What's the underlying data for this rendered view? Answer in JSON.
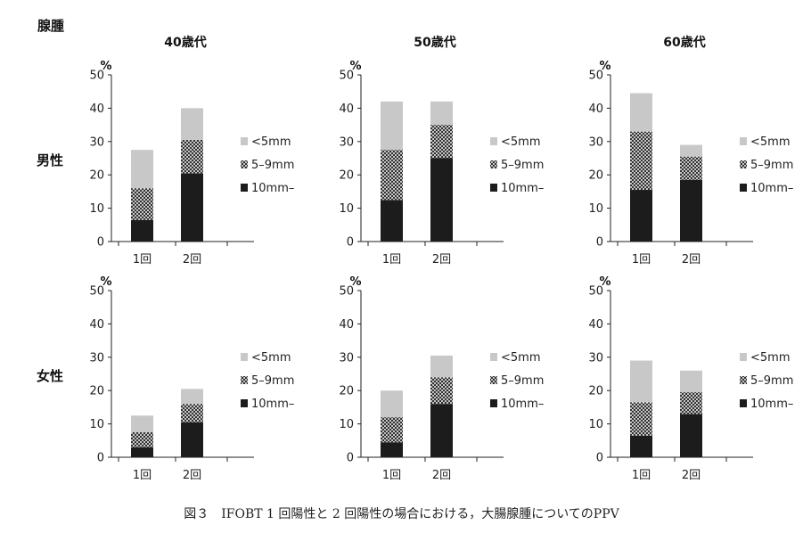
{
  "figure": {
    "heading": "腺腫",
    "caption": "図３　IFOBT 1 回陽性と 2 回陽性の場合における，大腸腺腫についてのPPV"
  },
  "rows": [
    {
      "label": "男性"
    },
    {
      "label": "女性"
    }
  ],
  "columns": [
    {
      "label": "40歳代"
    },
    {
      "label": "50歳代"
    },
    {
      "label": "60歳代"
    }
  ],
  "colors": {
    "lt5mm": "#c8c8c8",
    "5to9mm": "pattern-crosshatch",
    "10mm": "#1c1c1c"
  },
  "chart_data": [
    {
      "type": "bar",
      "stacked": true,
      "row": "男性",
      "col": "40歳代",
      "unit": "%",
      "ylim": [
        0,
        50
      ],
      "yticks": [
        0,
        10,
        20,
        30,
        40,
        50
      ],
      "categories": [
        "1回",
        "2回"
      ],
      "series": [
        {
          "name": "10mm–",
          "values": [
            6.5,
            20.5
          ]
        },
        {
          "name": "5–9mm",
          "values": [
            9.5,
            10.0
          ]
        },
        {
          "name": "<5mm",
          "values": [
            11.5,
            9.5
          ]
        }
      ]
    },
    {
      "type": "bar",
      "stacked": true,
      "row": "男性",
      "col": "50歳代",
      "unit": "%",
      "ylim": [
        0,
        50
      ],
      "yticks": [
        0,
        10,
        20,
        30,
        40,
        50
      ],
      "categories": [
        "1回",
        "2回"
      ],
      "series": [
        {
          "name": "10mm–",
          "values": [
            12.5,
            25.0
          ]
        },
        {
          "name": "5–9mm",
          "values": [
            15.0,
            10.0
          ]
        },
        {
          "name": "<5mm",
          "values": [
            14.5,
            7.0
          ]
        }
      ]
    },
    {
      "type": "bar",
      "stacked": true,
      "row": "男性",
      "col": "60歳代",
      "unit": "%",
      "ylim": [
        0,
        50
      ],
      "yticks": [
        0,
        10,
        20,
        30,
        40,
        50
      ],
      "categories": [
        "1回",
        "2回"
      ],
      "series": [
        {
          "name": "10mm–",
          "values": [
            15.5,
            18.5
          ]
        },
        {
          "name": "5–9mm",
          "values": [
            17.5,
            7.0
          ]
        },
        {
          "name": "<5mm",
          "values": [
            11.5,
            3.5
          ]
        }
      ]
    },
    {
      "type": "bar",
      "stacked": true,
      "row": "女性",
      "col": "40歳代",
      "unit": "%",
      "ylim": [
        0,
        50
      ],
      "yticks": [
        0,
        10,
        20,
        30,
        40,
        50
      ],
      "categories": [
        "1回",
        "2回"
      ],
      "series": [
        {
          "name": "10mm–",
          "values": [
            3.0,
            10.5
          ]
        },
        {
          "name": "5–9mm",
          "values": [
            4.5,
            5.5
          ]
        },
        {
          "name": "<5mm",
          "values": [
            5.0,
            4.5
          ]
        }
      ]
    },
    {
      "type": "bar",
      "stacked": true,
      "row": "女性",
      "col": "50歳代",
      "unit": "%",
      "ylim": [
        0,
        50
      ],
      "yticks": [
        0,
        10,
        20,
        30,
        40,
        50
      ],
      "categories": [
        "1回",
        "2回"
      ],
      "series": [
        {
          "name": "10mm–",
          "values": [
            4.5,
            16.0
          ]
        },
        {
          "name": "5–9mm",
          "values": [
            7.5,
            8.0
          ]
        },
        {
          "name": "<5mm",
          "values": [
            8.0,
            6.5
          ]
        }
      ]
    },
    {
      "type": "bar",
      "stacked": true,
      "row": "女性",
      "col": "60歳代",
      "unit": "%",
      "ylim": [
        0,
        50
      ],
      "yticks": [
        0,
        10,
        20,
        30,
        40,
        50
      ],
      "categories": [
        "1回",
        "2回"
      ],
      "series": [
        {
          "name": "10mm–",
          "values": [
            6.5,
            13.0
          ]
        },
        {
          "name": "5–9mm",
          "values": [
            10.0,
            6.5
          ]
        },
        {
          "name": "<5mm",
          "values": [
            12.5,
            6.5
          ]
        }
      ]
    }
  ],
  "legend": [
    {
      "key": "lt5mm",
      "label": "<5mm"
    },
    {
      "key": "5to9mm",
      "label": "5–9mm"
    },
    {
      "key": "10mm",
      "label": "10mm–"
    }
  ]
}
